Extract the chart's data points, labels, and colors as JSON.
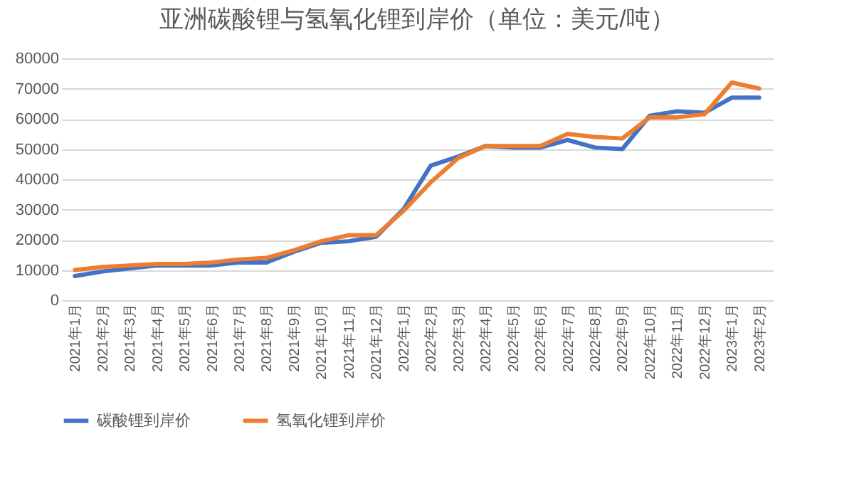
{
  "chart_data": {
    "type": "line",
    "title": "亚洲碳酸锂与氢氧化锂到岸价（单位：美元/吨）",
    "categories": [
      "2021年1月",
      "2021年2月",
      "2021年3月",
      "2021年4月",
      "2021年5月",
      "2021年6月",
      "2021年7月",
      "2021年8月",
      "2021年9月",
      "2021年10月",
      "2021年11月",
      "2021年12月",
      "2022年1月",
      "2022年2月",
      "2022年3月",
      "2022年4月",
      "2022年5月",
      "2022年6月",
      "2022年7月",
      "2022年8月",
      "2022年9月",
      "2022年10月",
      "2022年11月",
      "2022年12月",
      "2023年1月",
      "2023年2月"
    ],
    "series": [
      {
        "name": "碳酸锂到岸价",
        "color": "#4472c4",
        "values": [
          8000,
          9500,
          10500,
          11500,
          11500,
          11500,
          12500,
          12500,
          16000,
          19000,
          19500,
          21000,
          30000,
          44500,
          47500,
          51000,
          50500,
          50500,
          53000,
          50500,
          50000,
          61000,
          62500,
          62000,
          67000,
          67000
        ]
      },
      {
        "name": "氢氧化锂到岸价",
        "color": "#ed7d31",
        "values": [
          10000,
          11000,
          11500,
          12000,
          12000,
          12500,
          13500,
          14000,
          16500,
          19500,
          21500,
          21500,
          29500,
          39000,
          47000,
          51000,
          51000,
          51000,
          55000,
          54000,
          53500,
          60500,
          60500,
          61500,
          72000,
          70000
        ]
      }
    ],
    "ylim": [
      0,
      80000
    ],
    "yticks": [
      0,
      10000,
      20000,
      30000,
      40000,
      50000,
      60000,
      70000,
      80000
    ],
    "grid": "y",
    "legend": "bottom",
    "marker": "none",
    "line_style": "solid"
  }
}
